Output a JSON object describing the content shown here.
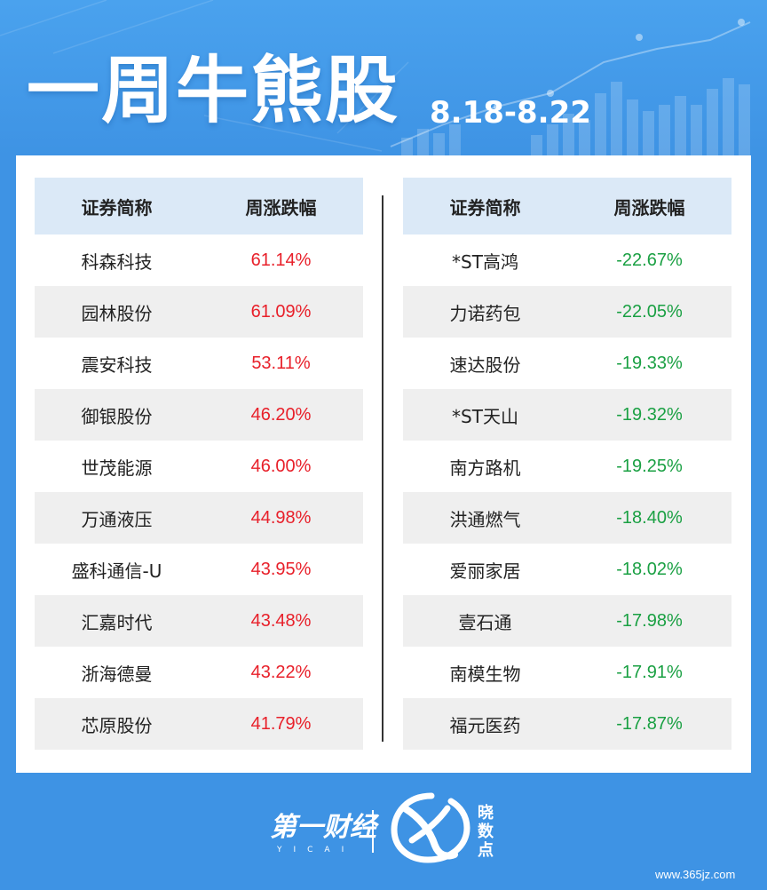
{
  "header": {
    "title": "一周牛熊股",
    "date_range": "8.18-8.22"
  },
  "colors": {
    "background": "#3e93e4",
    "gain": "#e8202a",
    "loss": "#1aa043",
    "table_header": "#dbe9f7",
    "row_alt": "#efefef"
  },
  "gainers": {
    "headers": {
      "name": "证券简称",
      "change": "周涨跌幅"
    },
    "rows": [
      {
        "name": "科森科技",
        "change": "61.14%"
      },
      {
        "name": "园林股份",
        "change": "61.09%"
      },
      {
        "name": "震安科技",
        "change": "53.11%"
      },
      {
        "name": "御银股份",
        "change": "46.20%"
      },
      {
        "name": "世茂能源",
        "change": "46.00%"
      },
      {
        "name": "万通液压",
        "change": "44.98%"
      },
      {
        "name": "盛科通信-U",
        "change": "43.95%"
      },
      {
        "name": "汇嘉时代",
        "change": "43.48%"
      },
      {
        "name": "浙海德曼",
        "change": "43.22%"
      },
      {
        "name": "芯原股份",
        "change": "41.79%"
      }
    ]
  },
  "losers": {
    "headers": {
      "name": "证券简称",
      "change": "周涨跌幅"
    },
    "rows": [
      {
        "name": "*ST高鸿",
        "change": "-22.67%"
      },
      {
        "name": "力诺药包",
        "change": "-22.05%"
      },
      {
        "name": "速达股份",
        "change": "-19.33%"
      },
      {
        "name": "*ST天山",
        "change": "-19.32%"
      },
      {
        "name": "南方路机",
        "change": "-19.25%"
      },
      {
        "name": "洪通燃气",
        "change": "-18.40%"
      },
      {
        "name": "爱丽家居",
        "change": "-18.02%"
      },
      {
        "name": "壹石通",
        "change": "-17.98%"
      },
      {
        "name": "南模生物",
        "change": "-17.91%"
      },
      {
        "name": "福元医药",
        "change": "-17.87%"
      }
    ]
  },
  "footer": {
    "brand": "第一财经",
    "brand_sub": "YICAI",
    "program": "晓数点",
    "watermark": "www.365jz.com"
  },
  "icons": [
    "yicai-logo-icon",
    "xiaoshudian-emblem-icon",
    "bar-chart-decoration-icon"
  ]
}
